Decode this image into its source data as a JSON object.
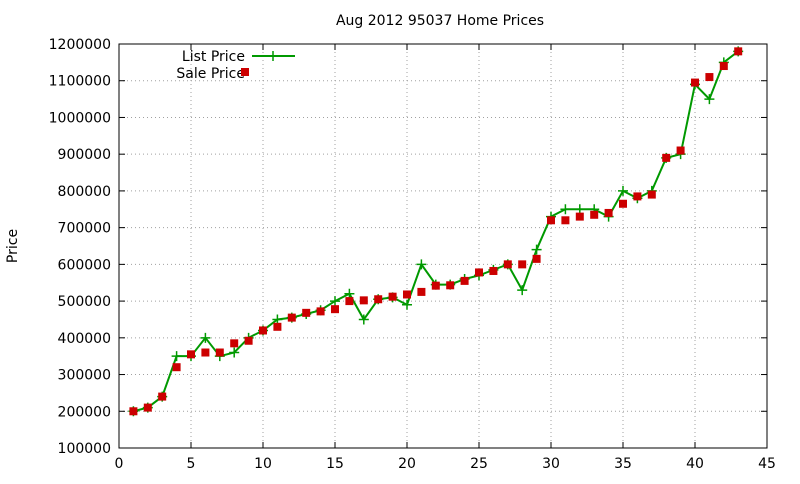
{
  "chart_data": {
    "type": "line",
    "title": "Aug 2012 95037 Home Prices",
    "xlabel": "",
    "ylabel": "Price",
    "xlim": [
      0,
      45
    ],
    "ylim": [
      100000,
      1200000
    ],
    "x_ticks": [
      0,
      5,
      10,
      15,
      20,
      25,
      30,
      35,
      40,
      45
    ],
    "y_ticks": [
      100000,
      200000,
      300000,
      400000,
      500000,
      600000,
      700000,
      800000,
      900000,
      1000000,
      1100000,
      1200000
    ],
    "x_tick_labels": [
      "0",
      "5",
      "10",
      "15",
      "20",
      "25",
      "30",
      "35",
      "40",
      "45"
    ],
    "y_tick_labels": [
      "100000",
      "200000",
      "300000",
      "400000",
      "500000",
      "600000",
      "700000",
      "800000",
      "900000",
      "1000000",
      "1100000",
      "1200000"
    ],
    "grid": true,
    "legend_position": "top-left",
    "x": [
      1,
      2,
      3,
      4,
      5,
      6,
      7,
      8,
      9,
      10,
      11,
      12,
      13,
      14,
      15,
      16,
      17,
      18,
      19,
      20,
      21,
      22,
      23,
      24,
      25,
      26,
      27,
      28,
      29,
      30,
      31,
      32,
      33,
      34,
      35,
      36,
      37,
      38,
      39,
      40,
      41,
      42,
      43
    ],
    "series": [
      {
        "name": "List Price",
        "style": "line+cross",
        "color": "#009900",
        "values": [
          200000,
          210000,
          240000,
          350000,
          350000,
          400000,
          350000,
          360000,
          400000,
          420000,
          450000,
          455000,
          465000,
          475000,
          500000,
          520000,
          450000,
          505000,
          510000,
          490000,
          600000,
          545000,
          545000,
          560000,
          570000,
          585000,
          600000,
          530000,
          640000,
          730000,
          750000,
          750000,
          750000,
          730000,
          800000,
          780000,
          800000,
          890000,
          900000,
          1090000,
          1050000,
          1150000,
          1180000
        ]
      },
      {
        "name": "Sale Price",
        "style": "square",
        "color": "#cc0000",
        "values": [
          200000,
          210000,
          240000,
          320000,
          355000,
          360000,
          360000,
          385000,
          392000,
          420000,
          430000,
          455000,
          468000,
          472000,
          478000,
          500000,
          502000,
          505000,
          512000,
          518000,
          525000,
          542000,
          543000,
          555000,
          578000,
          582000,
          600000,
          600000,
          615000,
          720000,
          720000,
          730000,
          735000,
          740000,
          765000,
          785000,
          790000,
          890000,
          910000,
          1095000,
          1110000,
          1140000,
          1180000
        ]
      }
    ]
  }
}
